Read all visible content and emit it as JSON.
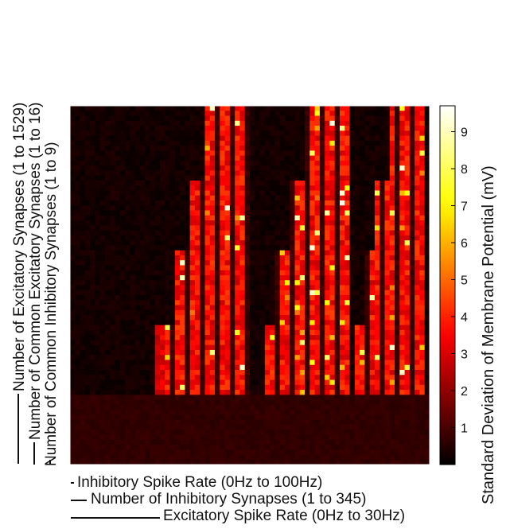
{
  "chart_data": {
    "type": "heatmap",
    "title": "",
    "x_axis_labels": [
      "Inhibitory Spike Rate (0Hz to 100Hz)",
      "Number of Inhibitory Synapses (1 to 345)",
      "Excitatory Spike Rate (0Hz to 30Hz)"
    ],
    "y_axis_labels": [
      "Number of Excitatory Synapses (1 to 1529)",
      "Number of Common Excitatory Synapses (1 to 16)",
      "Number of Common Inhibitory Synapses (1 to 9)"
    ],
    "colorbar": {
      "label": "Standard Deviation of Membrane Potential (mV)",
      "ticks": [
        1,
        2,
        3,
        4,
        5,
        6,
        7,
        8,
        9
      ],
      "range": [
        0,
        9.7
      ],
      "colormap": "hot"
    },
    "value_range": [
      0,
      9.7
    ],
    "grid": false,
    "legend": "none"
  }
}
